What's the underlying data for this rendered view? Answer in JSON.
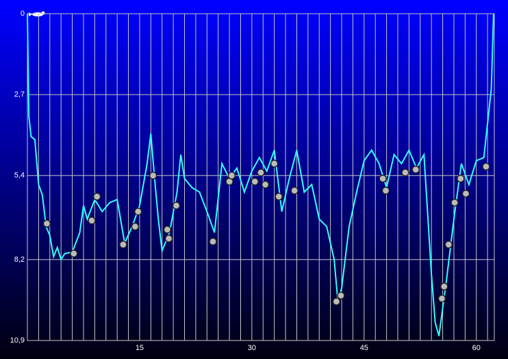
{
  "chart_data": {
    "type": "line",
    "xlim": [
      0,
      62.4
    ],
    "xticks": [
      15,
      30,
      45,
      60
    ],
    "ylim": [
      0,
      10.9
    ],
    "y_inverted": true,
    "yticks": [
      0,
      {
        "value": 2.7,
        "label": "2,7"
      },
      {
        "value": 5.4,
        "label": "5,4"
      },
      {
        "value": 8.2,
        "label": "8,2"
      },
      {
        "value": 10.9,
        "label": "10,9"
      }
    ],
    "grid": true,
    "color": "#33ffff",
    "x": [
      0,
      0.2,
      0.5,
      1,
      1.5,
      2,
      2.5,
      3,
      3.5,
      4,
      4.5,
      5,
      6,
      7,
      7.5,
      8,
      9,
      10,
      11,
      12,
      13,
      14,
      15,
      16,
      16.5,
      17,
      17.5,
      18,
      19,
      20,
      20.5,
      21,
      22,
      23,
      24,
      25,
      26,
      27,
      28,
      29,
      30,
      31,
      32,
      33,
      34,
      35,
      36,
      37,
      38,
      39,
      40,
      41,
      41.5,
      42,
      43,
      44,
      45,
      46,
      47,
      48,
      49,
      50,
      51,
      52,
      53,
      54,
      54.5,
      55,
      56,
      57,
      58,
      59,
      60,
      61,
      62,
      62.3
    ],
    "values": [
      0,
      3.43,
      4.1,
      4.2,
      5.7,
      6.05,
      7.1,
      7.4,
      8.1,
      7.8,
      8.2,
      8.0,
      7.95,
      7.3,
      6.4,
      6.85,
      6.2,
      6.6,
      6.3,
      6.2,
      7.65,
      7.1,
      6.4,
      5.0,
      4.0,
      5.5,
      6.85,
      7.9,
      7.3,
      5.95,
      4.7,
      5.5,
      5.8,
      5.95,
      6.6,
      7.3,
      5.0,
      5.5,
      5.15,
      5.95,
      5.25,
      4.8,
      5.25,
      4.55,
      6.6,
      5.5,
      4.55,
      5.95,
      5.7,
      6.85,
      7.1,
      8.2,
      9.6,
      9.15,
      7.1,
      5.95,
      4.9,
      4.55,
      5.0,
      5.8,
      4.7,
      5.0,
      4.55,
      5.15,
      4.7,
      8.7,
      10.3,
      10.75,
      8.9,
      6.85,
      5.0,
      5.7,
      4.9,
      4.8,
      2.5,
      0
    ],
    "markers": {
      "x": [
        2.6,
        6.2,
        8.6,
        9.3,
        12.8,
        14.4,
        14.8,
        16.8,
        18.7,
        18.9,
        19.9,
        24.8,
        27,
        27.3,
        30.4,
        31.2,
        31.8,
        33,
        33.6,
        35.7,
        41.3,
        41.9,
        47.5,
        47.9,
        50.5,
        51.9,
        55.4,
        55.7,
        56.3,
        57.1,
        57.9,
        58.6,
        61.3
      ],
      "values": [
        7.0,
        8.0,
        6.9,
        6.1,
        7.7,
        7.1,
        6.6,
        5.4,
        7.2,
        7.5,
        6.4,
        7.6,
        5.6,
        5.4,
        5.6,
        5.3,
        5.7,
        5.0,
        6.1,
        5.9,
        9.6,
        9.4,
        5.5,
        5.9,
        5.3,
        5.2,
        9.5,
        9.1,
        7.7,
        6.3,
        5.5,
        6.0,
        5.1
      ]
    }
  }
}
